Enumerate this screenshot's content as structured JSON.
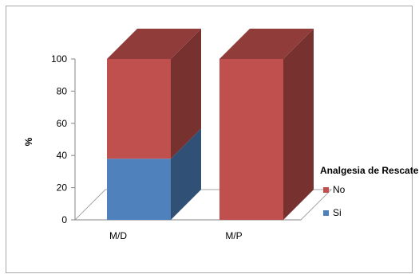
{
  "chart_data": {
    "type": "bar",
    "stacked": true,
    "three_d": true,
    "categories": [
      "M/D",
      "M/P"
    ],
    "series": [
      {
        "name": "Si",
        "values": [
          38,
          0
        ],
        "color": "#4f81bd"
      },
      {
        "name": "No",
        "values": [
          62,
          100
        ],
        "color": "#c0504d"
      }
    ],
    "ylabel": "%",
    "xlabel": "",
    "title": "",
    "ylim": [
      0,
      100
    ],
    "yticks": [
      0,
      20,
      40,
      60,
      80,
      100
    ],
    "legend_title": "Analgesia de Rescate",
    "legend_position": "right",
    "grid": false
  }
}
